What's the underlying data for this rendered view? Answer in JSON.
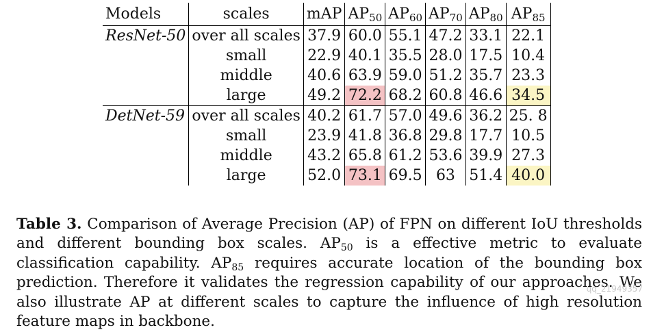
{
  "table": {
    "headers": {
      "models": "Models",
      "scales": "scales",
      "map": "mAP",
      "ap": "AP",
      "ap_subs": [
        "50",
        "60",
        "70",
        "80",
        "85"
      ]
    },
    "groups": [
      {
        "model": "ResNet-50",
        "rows": [
          {
            "scale": "over all scales",
            "values": [
              "37.9",
              "60.0",
              "55.1",
              "47.2",
              "33.1",
              "22.1"
            ]
          },
          {
            "scale": "small",
            "values": [
              "22.9",
              "40.1",
              "35.5",
              "28.0",
              "17.5",
              "10.4"
            ]
          },
          {
            "scale": "middle",
            "values": [
              "40.6",
              "63.9",
              "59.0",
              "51.2",
              "35.7",
              "23.3"
            ]
          },
          {
            "scale": "large",
            "values": [
              "49.2",
              "72.2",
              "68.2",
              "60.8",
              "46.6",
              "34.5"
            ]
          }
        ]
      },
      {
        "model": "DetNet-59",
        "rows": [
          {
            "scale": "over all scales",
            "values": [
              "40.2",
              "61.7",
              "57.0",
              "49.6",
              "36.2",
              "25. 8"
            ]
          },
          {
            "scale": "small",
            "values": [
              "23.9",
              "41.8",
              "36.8",
              "29.8",
              "17.7",
              "10.5"
            ]
          },
          {
            "scale": "middle",
            "values": [
              "43.2",
              "65.8",
              "61.2",
              "53.6",
              "39.9",
              "27.3"
            ]
          },
          {
            "scale": "large",
            "values": [
              "52.0",
              "73.1",
              "69.5",
              "63",
              "51.4",
              "40.0"
            ]
          }
        ]
      }
    ],
    "highlight_colors": {
      "ap50_large": "#f4c2c4",
      "ap85_large": "#fbf5c4"
    }
  },
  "caption": {
    "label": "Table 3.",
    "part1": " Comparison of Average Precision (AP) of FPN on different IoU thresholds and different bounding box scales. AP",
    "sub1": "50",
    "part2": " is a effective metric to evaluate classification capability. AP",
    "sub2": "85",
    "part3": " requires accurate location of the bounding box prediction. Therefore it validates the regression capability of our approaches. We also illustrate AP at different scales to capture the influence of high resolution feature maps in backbone."
  },
  "watermark": "qq_21949357"
}
